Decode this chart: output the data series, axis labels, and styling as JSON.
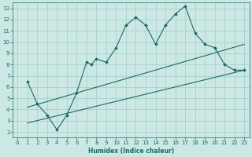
{
  "xlabel": "Humidex (Indice chaleur)",
  "background_color": "#cce8e4",
  "grid_color": "#aacfcb",
  "line_color": "#1a6b60",
  "xlim": [
    -0.5,
    23.5
  ],
  "ylim": [
    1.5,
    13.5
  ],
  "xticks": [
    0,
    1,
    2,
    3,
    4,
    5,
    6,
    7,
    8,
    9,
    10,
    11,
    12,
    13,
    14,
    15,
    16,
    17,
    18,
    19,
    20,
    21,
    22,
    23
  ],
  "yticks": [
    2,
    3,
    4,
    5,
    6,
    7,
    8,
    9,
    10,
    11,
    12,
    13
  ],
  "curve_x": [
    1,
    2,
    3,
    4,
    5,
    6,
    7,
    7.5,
    8,
    9,
    10,
    11,
    12,
    13,
    14,
    15,
    16,
    17,
    18,
    19,
    20,
    21,
    22,
    23
  ],
  "curve_y": [
    6.5,
    4.5,
    3.5,
    2.2,
    3.5,
    5.5,
    8.2,
    8.0,
    8.5,
    8.2,
    9.5,
    11.5,
    12.2,
    11.5,
    9.8,
    11.5,
    12.5,
    13.2,
    10.8,
    9.8,
    9.5,
    8.0,
    7.5,
    7.5
  ],
  "line1_x": [
    1,
    23
  ],
  "line1_y": [
    4.2,
    9.8
  ],
  "line2_x": [
    1,
    23
  ],
  "line2_y": [
    2.8,
    7.5
  ]
}
